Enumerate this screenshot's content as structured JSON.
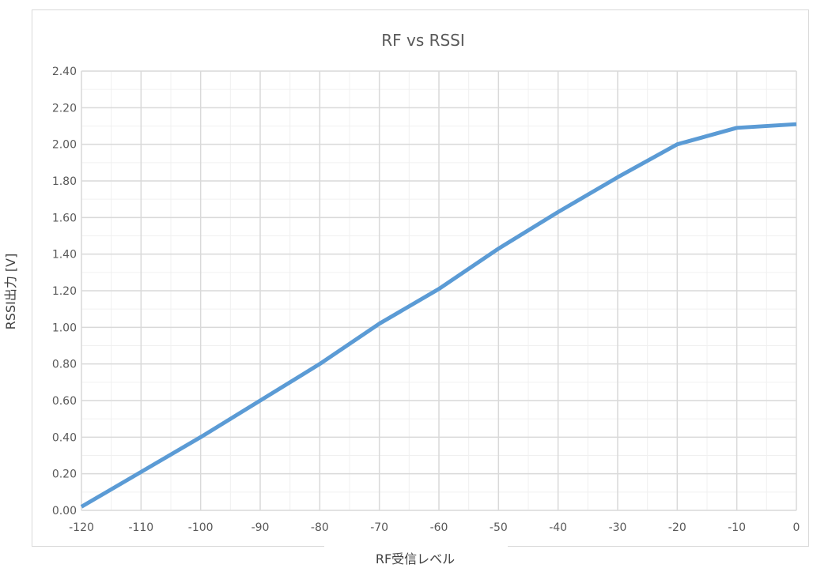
{
  "chart_data": {
    "type": "line",
    "title": "RF vs RSSI",
    "xlabel": "RF受信レベル",
    "ylabel": "RSSI出力 [V]",
    "x": [
      -120,
      -110,
      -100,
      -90,
      -80,
      -70,
      -60,
      -50,
      -40,
      -30,
      -20,
      -10,
      0
    ],
    "xticks": [
      "-120",
      "-110",
      "-100",
      "-90",
      "-80",
      "-70",
      "-60",
      "-50",
      "-40",
      "-30",
      "-20",
      "-10",
      "0"
    ],
    "xlim": [
      -120,
      0
    ],
    "ylim": [
      0,
      2.4
    ],
    "yticks": [
      "0.00",
      "0.20",
      "0.40",
      "0.60",
      "0.80",
      "1.00",
      "1.20",
      "1.40",
      "1.60",
      "1.80",
      "2.00",
      "2.20",
      "2.40"
    ],
    "grid": true,
    "legend": "none",
    "series": [
      {
        "color": "#5b9bd5",
        "values": [
          0.02,
          0.21,
          0.4,
          0.6,
          0.8,
          1.02,
          1.21,
          1.43,
          1.63,
          1.82,
          2.0,
          2.09,
          2.11
        ]
      }
    ]
  }
}
